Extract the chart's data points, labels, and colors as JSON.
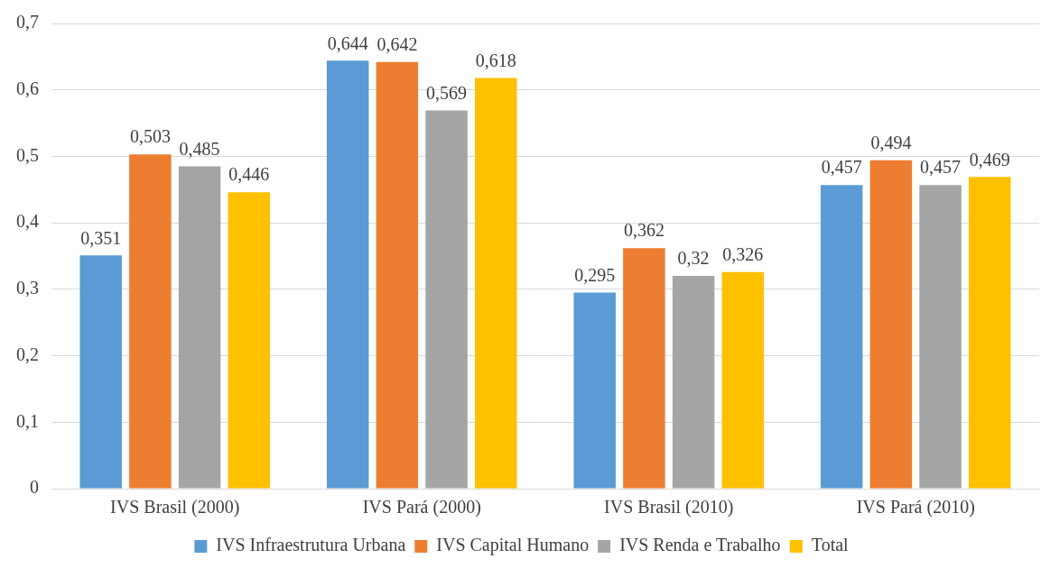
{
  "chart_data": {
    "type": "bar",
    "categories": [
      "IVS Brasil (2000)",
      "IVS Pará (2000)",
      "IVS Brasil (2010)",
      "IVS Pará (2010)"
    ],
    "series": [
      {
        "name": "IVS Infraestrutura Urbana",
        "color": "#5b9bd5",
        "values": [
          0.351,
          0.644,
          0.295,
          0.457
        ],
        "value_labels": [
          "0,351",
          "0,644",
          "0,295",
          "0,457"
        ]
      },
      {
        "name": "IVS Capital Humano",
        "color": "#ed7d31",
        "values": [
          0.503,
          0.642,
          0.362,
          0.494
        ],
        "value_labels": [
          "0,503",
          "0,642",
          "0,362",
          "0,494"
        ]
      },
      {
        "name": "IVS Renda e Trabalho",
        "color": "#a5a5a5",
        "values": [
          0.485,
          0.569,
          0.32,
          0.457
        ],
        "value_labels": [
          "0,485",
          "0,569",
          "0,32",
          "0,457"
        ]
      },
      {
        "name": "Total",
        "color": "#ffc000",
        "values": [
          0.446,
          0.618,
          0.326,
          0.469
        ],
        "value_labels": [
          "0,446",
          "0,618",
          "0,326",
          "0,469"
        ]
      }
    ],
    "ylim": [
      0,
      0.7
    ],
    "yticks": [
      {
        "value": 0,
        "label": "0"
      },
      {
        "value": 0.1,
        "label": "0,1"
      },
      {
        "value": 0.2,
        "label": "0,2"
      },
      {
        "value": 0.3,
        "label": "0,3"
      },
      {
        "value": 0.4,
        "label": "0,4"
      },
      {
        "value": 0.5,
        "label": "0,5"
      },
      {
        "value": 0.6,
        "label": "0,6"
      },
      {
        "value": 0.7,
        "label": "0,7"
      }
    ],
    "grid": "y",
    "legend": "bottom"
  }
}
